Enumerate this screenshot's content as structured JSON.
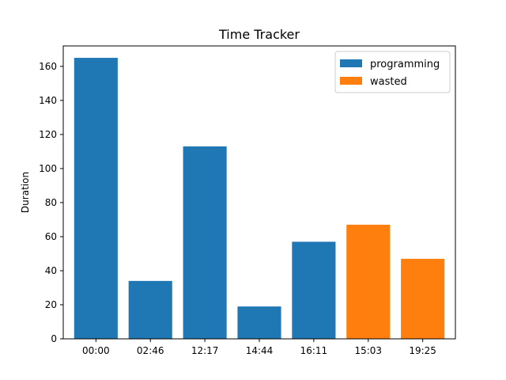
{
  "chart_data": {
    "type": "bar",
    "title": "Time Tracker",
    "xlabel": "",
    "ylabel": "Duration",
    "ylim": [
      0,
      172
    ],
    "yticks": [
      0,
      20,
      40,
      60,
      80,
      100,
      120,
      140,
      160
    ],
    "grid": false,
    "legend_position": "top-right",
    "categories": [
      "00:00",
      "02:46",
      "12:17",
      "14:44",
      "16:11",
      "15:03",
      "19:25"
    ],
    "values": [
      165,
      34,
      113,
      19,
      57,
      67,
      47
    ],
    "series_of_bar": [
      "programming",
      "programming",
      "programming",
      "programming",
      "programming",
      "wasted",
      "wasted"
    ],
    "series": [
      {
        "name": "programming",
        "color": "#1f77b4"
      },
      {
        "name": "wasted",
        "color": "#ff7f0e"
      }
    ]
  }
}
